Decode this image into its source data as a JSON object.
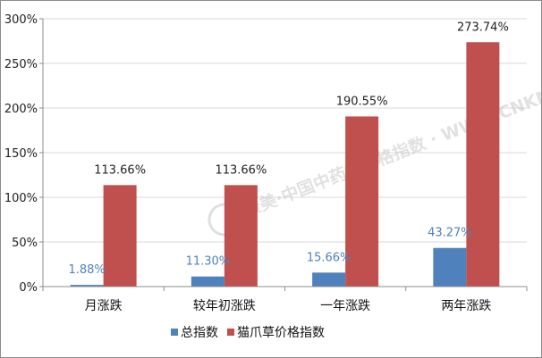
{
  "chart_data": {
    "type": "bar",
    "categories": [
      "月涨跌",
      "较年初涨跌",
      "一年涨跌",
      "两年涨跌"
    ],
    "series": [
      {
        "name": "总指数",
        "values": [
          1.88,
          11.3,
          15.66,
          43.27
        ],
        "labels": [
          "1.88%",
          "11.30%",
          "15.66%",
          "43.27%"
        ],
        "color": "#4f81bd",
        "label_color": "#4f81bd"
      },
      {
        "name": "猫爪草价格指数",
        "values": [
          113.66,
          113.66,
          190.55,
          273.74
        ],
        "labels": [
          "113.66%",
          "113.66%",
          "190.55%",
          "273.74%"
        ],
        "color": "#c0504d",
        "label_color": "#222222"
      }
    ],
    "y_ticks": [
      0,
      50,
      100,
      150,
      200,
      250,
      300
    ],
    "y_tick_labels": [
      "0%",
      "50%",
      "100%",
      "150%",
      "200%",
      "250%",
      "300%"
    ],
    "ylim": [
      0,
      300
    ],
    "grid": true,
    "legend_position": "bottom",
    "watermark": "康美·中国中药材价格指数 · WWW.CNKMPRICE.COM"
  }
}
